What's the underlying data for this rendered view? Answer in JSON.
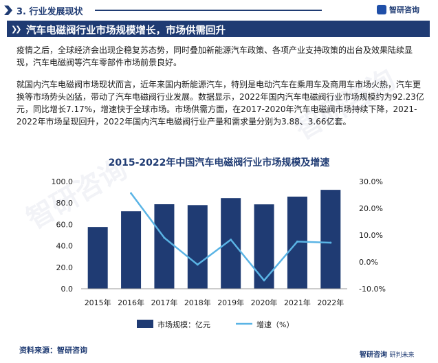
{
  "header": {
    "section_label": "3. 行业发展现状",
    "logo_text": "智研咨询"
  },
  "title": "汽车电磁阀行业市场规模增长，市场供需回升",
  "paragraphs": [
    "疫情之后，全球经济会出现企稳复苏态势，同时叠加新能源汽车政策、各项产业支持政策的出台及效果陆续显现，汽车电磁阀等汽车零部件市场前景良好。",
    "就国内汽车电磁阀市场现状而言，近年来国内新能源汽车，特别是电动汽车在乘用车及商用车市场火热，汽车更换等市场势头凶猛，带动了汽车电磁阀行业发展。数据显示，2022年国内汽车电磁阀行业市场规模约为92.23亿元，同比增长7.17%，增速快于全球市场。市场供需方面，在2017-2020年汽车电磁阀市场持续下降，2021-2022年市场呈现回升，2022年国内汽车电磁阀行业产量和需求量分别为3.88、3.66亿套。"
  ],
  "chart_data": {
    "type": "bar",
    "title": "2015-2022年中国汽车电磁阀行业市场规模及增速",
    "categories": [
      "2015年",
      "2016年",
      "2017年",
      "2018年",
      "2019年",
      "2020年",
      "2021年",
      "2022年"
    ],
    "series": [
      {
        "name": "市场规模：亿元",
        "type": "bar",
        "axis": "left",
        "color": "#1f3b73",
        "values": [
          57.6,
          72.3,
          78.8,
          78.0,
          84.5,
          78.7,
          85.9,
          92.23
        ]
      },
      {
        "name": "增速（%）",
        "type": "line",
        "axis": "right",
        "color": "#5ab4e5",
        "values": [
          null,
          25.6,
          9.0,
          -1.0,
          8.3,
          -6.9,
          7.6,
          7.17
        ]
      }
    ],
    "left_axis": {
      "ylim": [
        0,
        100
      ],
      "ticks": [
        "0.0",
        "20.0",
        "40.0",
        "60.0",
        "80.0",
        "100.0"
      ]
    },
    "right_axis": {
      "ylim": [
        -10,
        30
      ],
      "ticks": [
        "-10.0%",
        "0.0%",
        "10.0%",
        "20.0%",
        "30.0%"
      ]
    },
    "legend_position": "bottom",
    "grid": false
  },
  "source": "资料来源：智研咨询",
  "footer": {
    "logo_text": "智研咨询",
    "sub": "研判未来"
  },
  "colors": {
    "brand": "#1f3b73",
    "line": "#5ab4e5"
  }
}
